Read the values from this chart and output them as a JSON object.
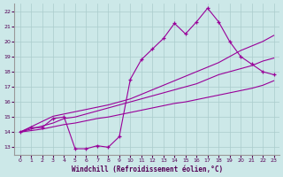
{
  "xlabel": "Windchill (Refroidissement éolien,°C)",
  "bg_color": "#cce8e8",
  "line_color": "#990099",
  "grid_color": "#aacccc",
  "xlim": [
    -0.5,
    23.5
  ],
  "ylim": [
    12.5,
    22.5
  ],
  "yticks": [
    13,
    14,
    15,
    16,
    17,
    18,
    19,
    20,
    21,
    22
  ],
  "xticks": [
    0,
    1,
    2,
    3,
    4,
    5,
    6,
    7,
    8,
    9,
    10,
    11,
    12,
    13,
    14,
    15,
    16,
    17,
    18,
    19,
    20,
    21,
    22,
    23
  ],
  "series": {
    "main": [
      14.0,
      14.3,
      14.3,
      14.9,
      15.0,
      12.9,
      12.9,
      13.1,
      13.0,
      13.7,
      17.5,
      18.8,
      19.5,
      20.2,
      21.2,
      20.5,
      21.3,
      22.2,
      21.3,
      20.0,
      19.0,
      18.5,
      18.0,
      17.8
    ],
    "line1": [
      14.0,
      14.35,
      14.7,
      15.05,
      15.2,
      15.35,
      15.5,
      15.65,
      15.8,
      16.0,
      16.2,
      16.5,
      16.8,
      17.1,
      17.4,
      17.7,
      18.0,
      18.3,
      18.6,
      19.0,
      19.4,
      19.7,
      20.0,
      20.4
    ],
    "line2": [
      14.0,
      14.2,
      14.4,
      14.6,
      14.9,
      15.0,
      15.2,
      15.4,
      15.6,
      15.8,
      16.0,
      16.2,
      16.4,
      16.6,
      16.8,
      17.0,
      17.2,
      17.5,
      17.8,
      18.0,
      18.2,
      18.4,
      18.7,
      18.9
    ],
    "line3": [
      14.0,
      14.1,
      14.2,
      14.35,
      14.5,
      14.6,
      14.75,
      14.9,
      15.0,
      15.15,
      15.3,
      15.45,
      15.6,
      15.75,
      15.9,
      16.0,
      16.15,
      16.3,
      16.45,
      16.6,
      16.75,
      16.9,
      17.1,
      17.4
    ]
  }
}
